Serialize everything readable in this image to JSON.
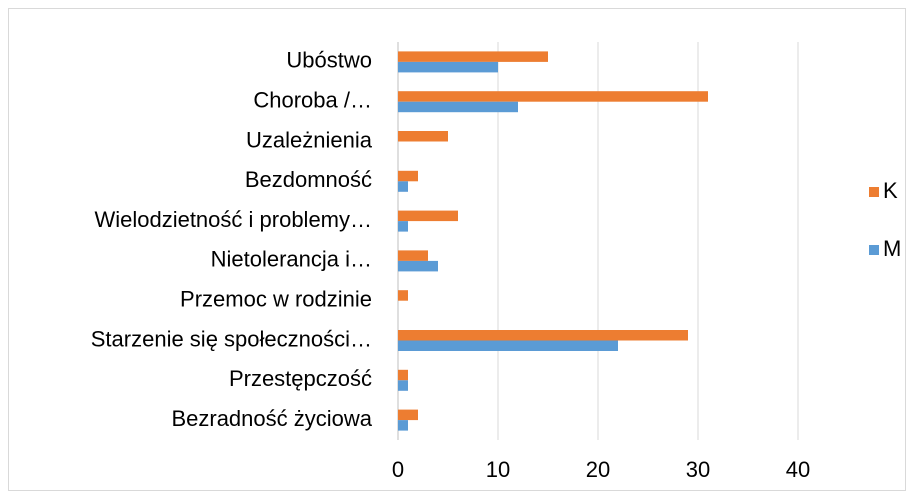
{
  "chart_data": {
    "type": "bar",
    "orientation": "horizontal",
    "categories": [
      "Ubóstwo",
      "Choroba /…",
      "Uzależnienia",
      "Bezdomność",
      "Wielodzietność i problemy…",
      "Nietolerancja i…",
      "Przemoc w rodzinie",
      "Starzenie się społeczności…",
      "Przestępczość",
      "Bezradność życiowa"
    ],
    "series": [
      {
        "name": "K",
        "color": "#ed7d31",
        "values": [
          15,
          31,
          5,
          2,
          6,
          3,
          1,
          29,
          1,
          2
        ]
      },
      {
        "name": "M",
        "color": "#5b9bd5",
        "values": [
          10,
          12,
          0,
          1,
          1,
          4,
          0,
          22,
          1,
          1
        ]
      }
    ],
    "xlim": [
      0,
      40
    ],
    "xticks": [
      0,
      10,
      20,
      30,
      40
    ],
    "grid": true,
    "legend": "right"
  }
}
